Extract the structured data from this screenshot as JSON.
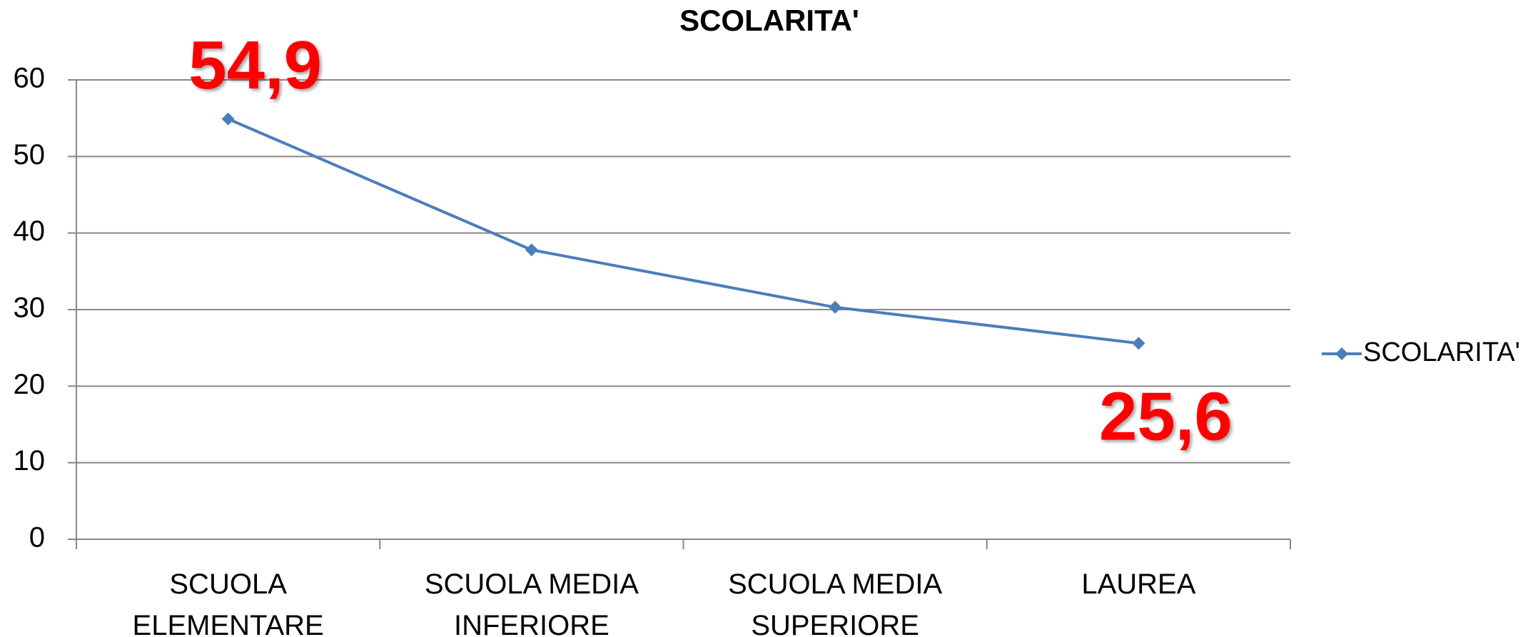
{
  "chart_data": {
    "type": "line",
    "title": "SCOLARITA'",
    "categories": [
      "SCUOLA ELEMENTARE",
      "SCUOLA MEDIA INFERIORE",
      "SCUOLA MEDIA SUPERIORE",
      "LAUREA"
    ],
    "series": [
      {
        "name": "SCOLARITA'",
        "color": "#4a7ebb",
        "values": [
          54.9,
          37.8,
          30.3,
          25.6
        ],
        "value_labels": [
          "54,9",
          null,
          null,
          "25,6"
        ]
      }
    ],
    "ylim": [
      0,
      60
    ],
    "yticks": [
      0,
      10,
      20,
      30,
      40,
      50,
      60
    ],
    "grid": true,
    "legend": "right",
    "label_color": "#ff0000"
  }
}
